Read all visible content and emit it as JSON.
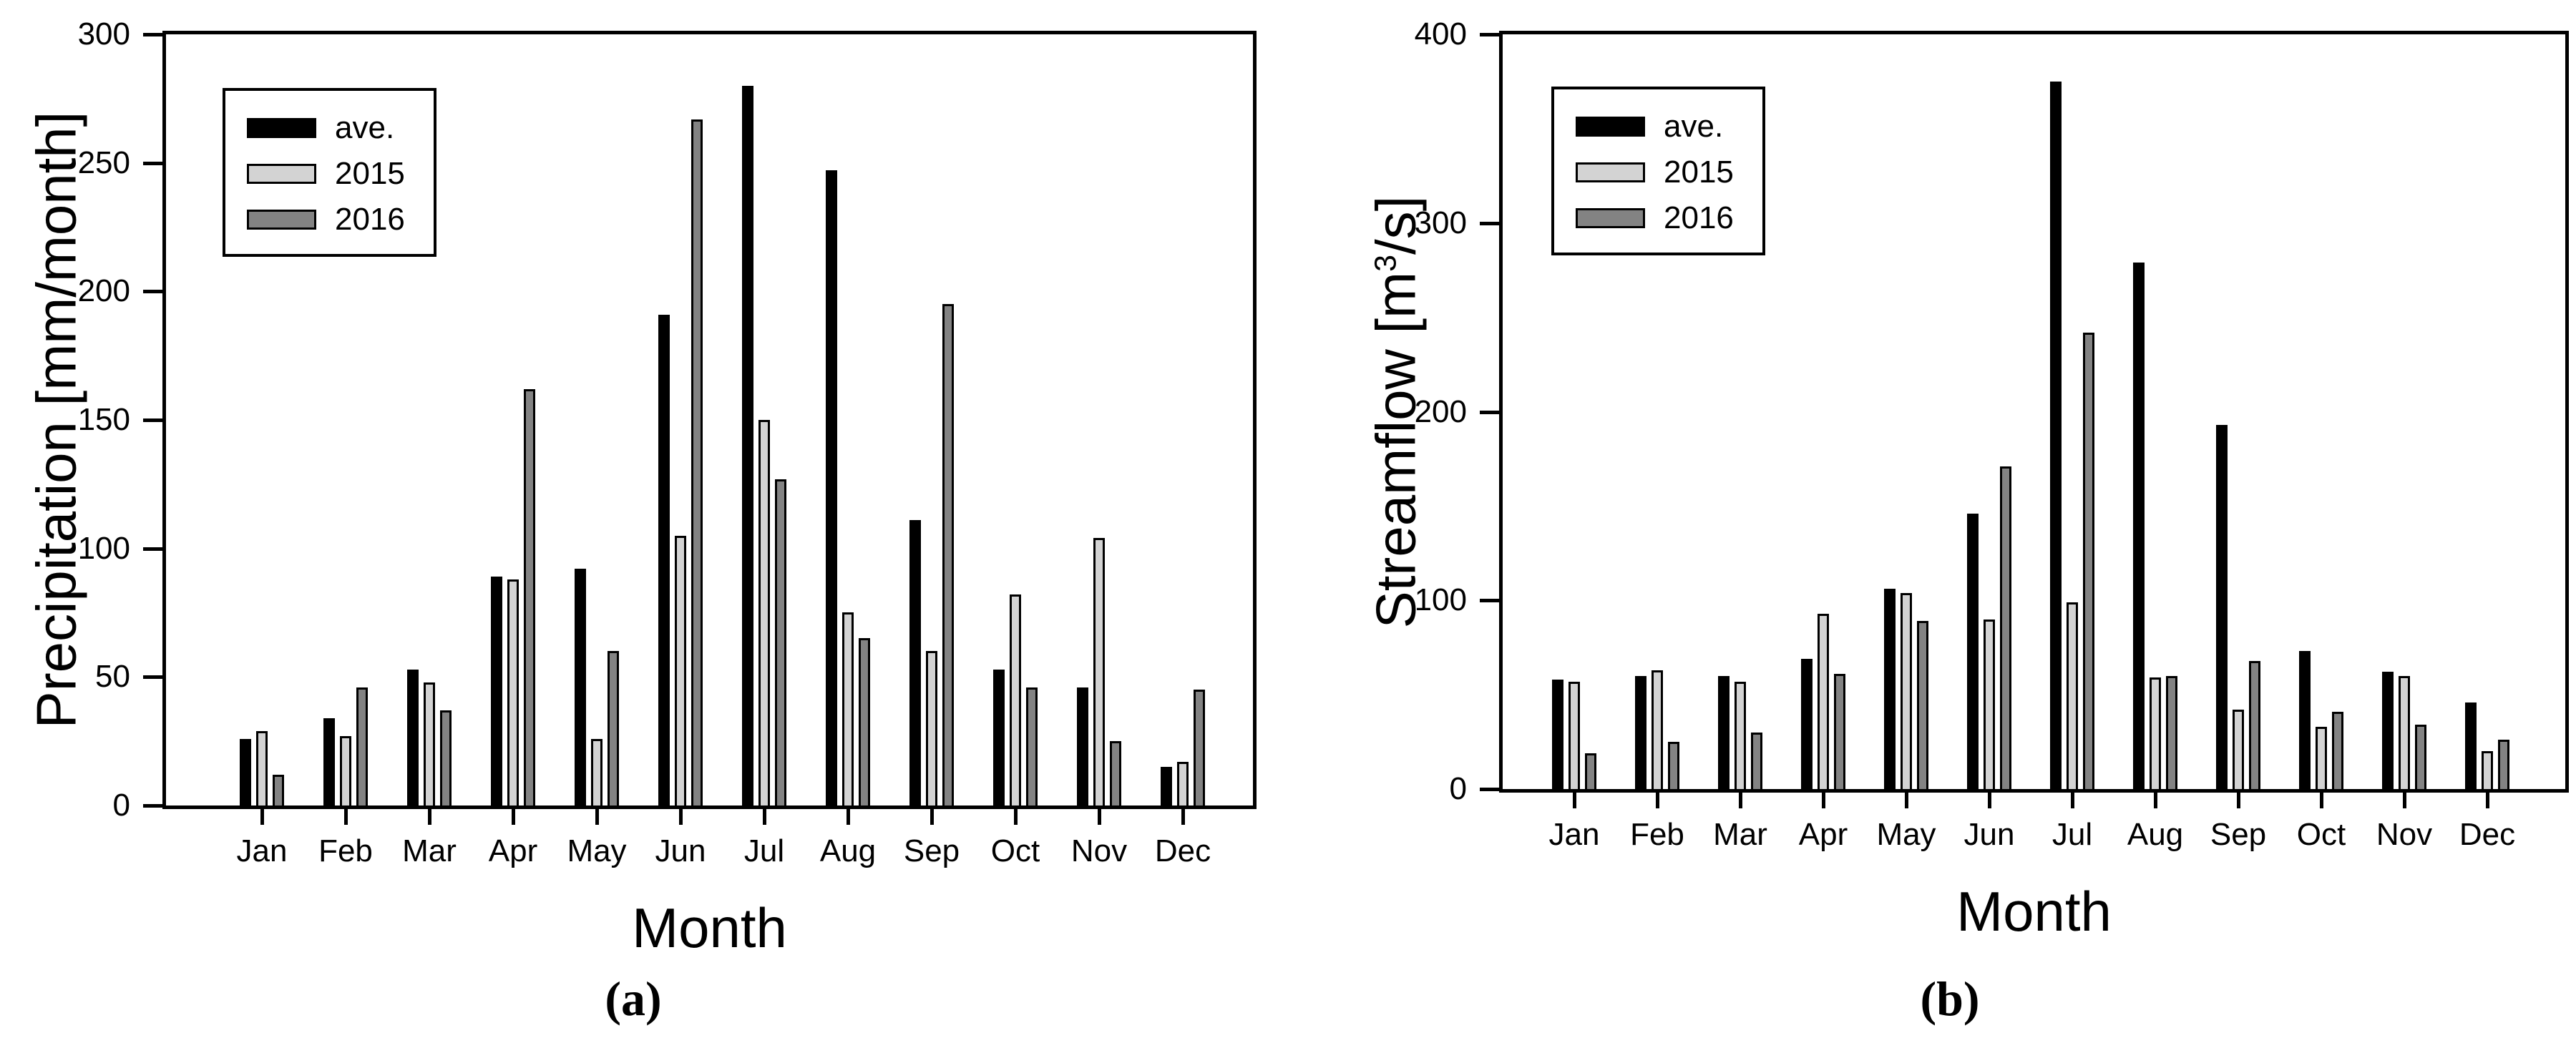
{
  "figure": {
    "background": "#ffffff",
    "text_color": "#000000",
    "caption_a": "(a)",
    "caption_b": "(b)"
  },
  "chart_data": [
    {
      "type": "bar",
      "panel": "a",
      "caption": "(a)",
      "xlabel": "Month",
      "ylabel": "Precipitation [mm/month]",
      "ylabel_prefix": "Precipitation [mm/month]",
      "ylabel_sup": "",
      "ylabel_suffix": "",
      "categories": [
        "Jan",
        "Feb",
        "Mar",
        "Apr",
        "May",
        "Jun",
        "Jul",
        "Aug",
        "Sep",
        "Oct",
        "Nov",
        "Dec"
      ],
      "series": [
        {
          "name": "ave.",
          "color": "#000000",
          "values": [
            26,
            34,
            53,
            89,
            92,
            191,
            280,
            247,
            111,
            53,
            46,
            15
          ]
        },
        {
          "name": "2015",
          "color": "#d3d3d3",
          "values": [
            29,
            27,
            48,
            88,
            26,
            105,
            150,
            75,
            60,
            82,
            104,
            17
          ]
        },
        {
          "name": "2016",
          "color": "#838383",
          "values": [
            12,
            46,
            37,
            162,
            60,
            267,
            127,
            65,
            195,
            46,
            25,
            45
          ]
        }
      ],
      "ylim": [
        0,
        300
      ],
      "ytick_step": 50,
      "grid": false,
      "legend_position": "upper-left"
    },
    {
      "type": "bar",
      "panel": "b",
      "caption": "(b)",
      "xlabel": "Month",
      "ylabel": "Streamflow [m3/s]",
      "ylabel_prefix": "Streamflow [m",
      "ylabel_sup": "3",
      "ylabel_suffix": "/s]",
      "categories": [
        "Jan",
        "Feb",
        "Mar",
        "Apr",
        "May",
        "Jun",
        "Jul",
        "Aug",
        "Sep",
        "Oct",
        "Nov",
        "Dec"
      ],
      "series": [
        {
          "name": "ave.",
          "color": "#000000",
          "values": [
            58,
            60,
            60,
            69,
            106,
            146,
            375,
            279,
            193,
            73,
            62,
            46
          ]
        },
        {
          "name": "2015",
          "color": "#d3d3d3",
          "values": [
            57,
            63,
            57,
            93,
            104,
            90,
            99,
            59,
            42,
            33,
            60,
            20
          ]
        },
        {
          "name": "2016",
          "color": "#838383",
          "values": [
            19,
            25,
            30,
            61,
            89,
            171,
            242,
            60,
            68,
            41,
            34,
            26
          ]
        }
      ],
      "ylim": [
        0,
        400
      ],
      "ytick_step": 100,
      "grid": false,
      "legend_position": "upper-left"
    }
  ]
}
